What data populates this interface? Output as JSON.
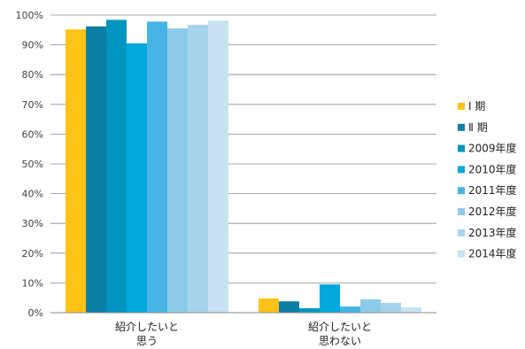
{
  "chart_data": {
    "type": "bar",
    "categories": [
      [
        "紹介したいと",
        "思う"
      ],
      [
        "紹介したいと",
        "思わない"
      ]
    ],
    "series": [
      {
        "name": "Ⅰ 期",
        "color": "#FDC316",
        "values": [
          95.2,
          4.8
        ]
      },
      {
        "name": "Ⅱ 期",
        "color": "#0A7FA3",
        "values": [
          96.2,
          3.8
        ]
      },
      {
        "name": "2009年度",
        "color": "#0095C0",
        "values": [
          98.4,
          1.5
        ]
      },
      {
        "name": "2010年度",
        "color": "#00A8DC",
        "values": [
          90.5,
          9.5
        ]
      },
      {
        "name": "2011年度",
        "color": "#46B5E5",
        "values": [
          97.8,
          2.1
        ]
      },
      {
        "name": "2012年度",
        "color": "#8DCAE8",
        "values": [
          95.5,
          4.5
        ]
      },
      {
        "name": "2013年度",
        "color": "#A7D3EE",
        "values": [
          96.7,
          3.3
        ]
      },
      {
        "name": "2014年度",
        "color": "#C8E2F4",
        "values": [
          98.1,
          1.8
        ]
      }
    ],
    "ylim": [
      0,
      100
    ],
    "yticks": [
      "0%",
      "10%",
      "20%",
      "30%",
      "40%",
      "50%",
      "60%",
      "70%",
      "80%",
      "90%",
      "100%"
    ],
    "grid": true,
    "legend": "right"
  }
}
